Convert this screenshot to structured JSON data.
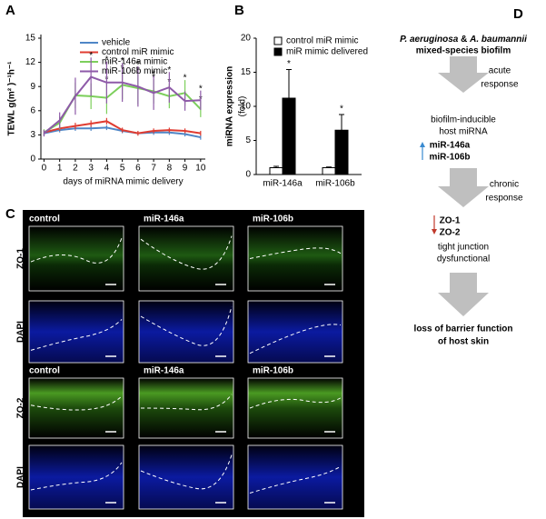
{
  "chart_data": [
    {
      "type": "line",
      "panel": "A",
      "ylabel": "TEWL g(m² )⁻¹h⁻¹",
      "xlabel": "days of miRNA mimic delivery",
      "x": [
        0,
        1,
        2,
        3,
        4,
        5,
        6,
        7,
        8,
        9,
        10
      ],
      "xlim": [
        -0.2,
        10.3
      ],
      "xticks": [
        0,
        1,
        2,
        3,
        4,
        5,
        6,
        7,
        8,
        9,
        10
      ],
      "ylim": [
        0,
        15
      ],
      "yticks": [
        0,
        3,
        6,
        9,
        12,
        15
      ],
      "star": "*",
      "series": [
        {
          "name": "vehicle",
          "color": "#4f86c6",
          "values": [
            3.2,
            3.6,
            3.8,
            3.8,
            3.9,
            3.5,
            3.2,
            3.3,
            3.3,
            3.1,
            2.7
          ],
          "errors": [
            0.3,
            0.3,
            0.3,
            0.3,
            0.3,
            0.3,
            0.2,
            0.3,
            0.3,
            0.3,
            0.3
          ],
          "stars": []
        },
        {
          "name": "control miR mimic",
          "color": "#e03c31",
          "values": [
            3.3,
            3.8,
            4.1,
            4.4,
            4.7,
            3.6,
            3.2,
            3.5,
            3.6,
            3.5,
            3.2
          ],
          "errors": [
            0.3,
            0.3,
            0.4,
            0.4,
            0.4,
            0.3,
            0.3,
            0.3,
            0.3,
            0.3,
            0.3
          ],
          "stars": []
        },
        {
          "name": "miR-146a mimic",
          "color": "#7ccf5b",
          "values": [
            3.3,
            4.5,
            7.9,
            7.8,
            7.6,
            9.2,
            8.8,
            8.4,
            7.8,
            8.2,
            6.2
          ],
          "errors": [
            0.4,
            0.8,
            1.6,
            1.6,
            2.0,
            1.8,
            2.0,
            1.5,
            1.5,
            1.6,
            1.0
          ],
          "stars": [
            4,
            5,
            6,
            7,
            8,
            9,
            10
          ]
        },
        {
          "name": "miR-106b mimic",
          "color": "#8e5aa8",
          "values": [
            3.2,
            4.8,
            7.8,
            10.2,
            9.5,
            9.5,
            9.0,
            8.2,
            8.9,
            7.2,
            7.3
          ],
          "errors": [
            0.4,
            1.0,
            2.3,
            2.4,
            2.6,
            2.4,
            2.5,
            2.1,
            1.9,
            1.2,
            1.2
          ],
          "stars": [
            3,
            4,
            5,
            6,
            7,
            8,
            10
          ]
        }
      ]
    },
    {
      "type": "bar",
      "panel": "B",
      "ylabel": "miRNA expression",
      "ylabel_unit": "(fold)",
      "categories": [
        "miR-146a",
        "miR-106b"
      ],
      "ylim": [
        0,
        20
      ],
      "yticks": [
        0,
        5,
        10,
        15,
        20
      ],
      "star": "*",
      "series": [
        {
          "name": "control miR mimic",
          "color": "#ffffff",
          "values": [
            1.0,
            1.0
          ],
          "errors": [
            0.2,
            0.1
          ]
        },
        {
          "name": "miR mimic delivered",
          "color": "#000000",
          "values": [
            11.2,
            6.5
          ],
          "errors": [
            4.2,
            2.3
          ]
        }
      ]
    }
  ],
  "panel_c": {
    "label": "C",
    "columns_top": [
      "control",
      "miR-146a",
      "miR-106b"
    ],
    "columns_bottom": [
      "control",
      "miR-146a",
      "miR-106b"
    ],
    "rows": [
      "ZO-1",
      "DAPI",
      "ZO-2",
      "DAPI"
    ]
  },
  "panel_d": {
    "label": "D",
    "title_parts": [
      "P. aeruginosa",
      " & ",
      "A. baumannii"
    ],
    "subtitle": "mixed-species biofilm",
    "acute": [
      "acute",
      "response"
    ],
    "host": [
      "biofilm-inducible",
      "host miRNA"
    ],
    "mirs": [
      "miR-146a",
      "miR-106b"
    ],
    "chronic": [
      "chronic",
      "response"
    ],
    "zos": [
      "ZO-1",
      "ZO-2"
    ],
    "dysfunction": [
      "tight junction",
      "dysfunctional"
    ],
    "outcome": [
      "loss of barrier function",
      "of host skin"
    ]
  }
}
